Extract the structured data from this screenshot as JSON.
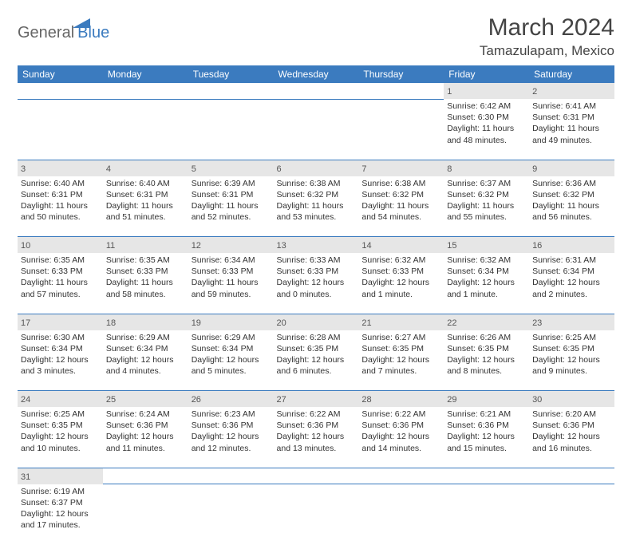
{
  "logo": {
    "text1": "General",
    "text2": "Blue"
  },
  "title": "March 2024",
  "location": "Tamazulapam, Mexico",
  "colors": {
    "header_bg": "#3b7bbf",
    "daynum_bg": "#e6e6e6",
    "rule": "#3b7bbf"
  },
  "weekdays": [
    "Sunday",
    "Monday",
    "Tuesday",
    "Wednesday",
    "Thursday",
    "Friday",
    "Saturday"
  ],
  "first_weekday": 5,
  "days_in_month": 31,
  "days": {
    "1": {
      "sunrise": "6:42 AM",
      "sunset": "6:30 PM",
      "daylight": "11 hours and 48 minutes."
    },
    "2": {
      "sunrise": "6:41 AM",
      "sunset": "6:31 PM",
      "daylight": "11 hours and 49 minutes."
    },
    "3": {
      "sunrise": "6:40 AM",
      "sunset": "6:31 PM",
      "daylight": "11 hours and 50 minutes."
    },
    "4": {
      "sunrise": "6:40 AM",
      "sunset": "6:31 PM",
      "daylight": "11 hours and 51 minutes."
    },
    "5": {
      "sunrise": "6:39 AM",
      "sunset": "6:31 PM",
      "daylight": "11 hours and 52 minutes."
    },
    "6": {
      "sunrise": "6:38 AM",
      "sunset": "6:32 PM",
      "daylight": "11 hours and 53 minutes."
    },
    "7": {
      "sunrise": "6:38 AM",
      "sunset": "6:32 PM",
      "daylight": "11 hours and 54 minutes."
    },
    "8": {
      "sunrise": "6:37 AM",
      "sunset": "6:32 PM",
      "daylight": "11 hours and 55 minutes."
    },
    "9": {
      "sunrise": "6:36 AM",
      "sunset": "6:32 PM",
      "daylight": "11 hours and 56 minutes."
    },
    "10": {
      "sunrise": "6:35 AM",
      "sunset": "6:33 PM",
      "daylight": "11 hours and 57 minutes."
    },
    "11": {
      "sunrise": "6:35 AM",
      "sunset": "6:33 PM",
      "daylight": "11 hours and 58 minutes."
    },
    "12": {
      "sunrise": "6:34 AM",
      "sunset": "6:33 PM",
      "daylight": "11 hours and 59 minutes."
    },
    "13": {
      "sunrise": "6:33 AM",
      "sunset": "6:33 PM",
      "daylight": "12 hours and 0 minutes."
    },
    "14": {
      "sunrise": "6:32 AM",
      "sunset": "6:33 PM",
      "daylight": "12 hours and 1 minute."
    },
    "15": {
      "sunrise": "6:32 AM",
      "sunset": "6:34 PM",
      "daylight": "12 hours and 1 minute."
    },
    "16": {
      "sunrise": "6:31 AM",
      "sunset": "6:34 PM",
      "daylight": "12 hours and 2 minutes."
    },
    "17": {
      "sunrise": "6:30 AM",
      "sunset": "6:34 PM",
      "daylight": "12 hours and 3 minutes."
    },
    "18": {
      "sunrise": "6:29 AM",
      "sunset": "6:34 PM",
      "daylight": "12 hours and 4 minutes."
    },
    "19": {
      "sunrise": "6:29 AM",
      "sunset": "6:34 PM",
      "daylight": "12 hours and 5 minutes."
    },
    "20": {
      "sunrise": "6:28 AM",
      "sunset": "6:35 PM",
      "daylight": "12 hours and 6 minutes."
    },
    "21": {
      "sunrise": "6:27 AM",
      "sunset": "6:35 PM",
      "daylight": "12 hours and 7 minutes."
    },
    "22": {
      "sunrise": "6:26 AM",
      "sunset": "6:35 PM",
      "daylight": "12 hours and 8 minutes."
    },
    "23": {
      "sunrise": "6:25 AM",
      "sunset": "6:35 PM",
      "daylight": "12 hours and 9 minutes."
    },
    "24": {
      "sunrise": "6:25 AM",
      "sunset": "6:35 PM",
      "daylight": "12 hours and 10 minutes."
    },
    "25": {
      "sunrise": "6:24 AM",
      "sunset": "6:36 PM",
      "daylight": "12 hours and 11 minutes."
    },
    "26": {
      "sunrise": "6:23 AM",
      "sunset": "6:36 PM",
      "daylight": "12 hours and 12 minutes."
    },
    "27": {
      "sunrise": "6:22 AM",
      "sunset": "6:36 PM",
      "daylight": "12 hours and 13 minutes."
    },
    "28": {
      "sunrise": "6:22 AM",
      "sunset": "6:36 PM",
      "daylight": "12 hours and 14 minutes."
    },
    "29": {
      "sunrise": "6:21 AM",
      "sunset": "6:36 PM",
      "daylight": "12 hours and 15 minutes."
    },
    "30": {
      "sunrise": "6:20 AM",
      "sunset": "6:36 PM",
      "daylight": "12 hours and 16 minutes."
    },
    "31": {
      "sunrise": "6:19 AM",
      "sunset": "6:37 PM",
      "daylight": "12 hours and 17 minutes."
    }
  },
  "labels": {
    "sunrise": "Sunrise: ",
    "sunset": "Sunset: ",
    "daylight": "Daylight: "
  }
}
